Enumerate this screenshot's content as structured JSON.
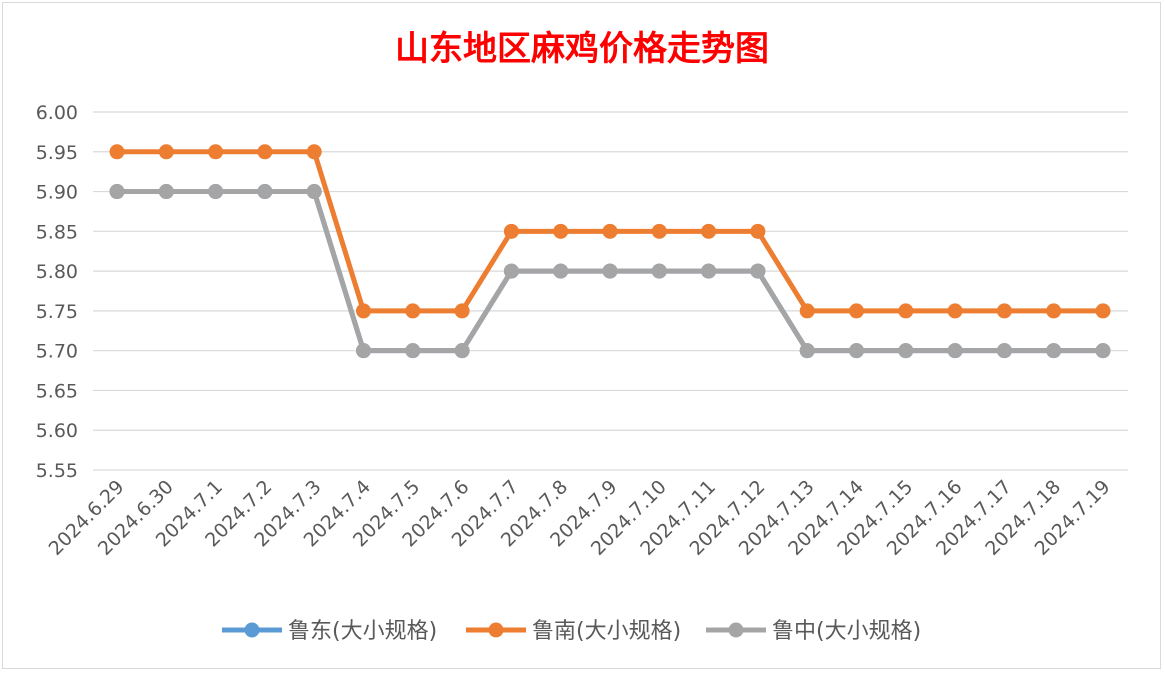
{
  "chart_data": {
    "type": "line",
    "title": "山东地区麻鸡价格走势图",
    "categories": [
      "2024.6.29",
      "2024.6.30",
      "2024.7.1",
      "2024.7.2",
      "2024.7.3",
      "2024.7.4",
      "2024.7.5",
      "2024.7.6",
      "2024.7.7",
      "2024.7.8",
      "2024.7.9",
      "2024.7.10",
      "2024.7.11",
      "2024.7.12",
      "2024.7.13",
      "2024.7.14",
      "2024.7.15",
      "2024.7.16",
      "2024.7.17",
      "2024.7.18",
      "2024.7.19"
    ],
    "series": [
      {
        "name": "鲁东(大小规格)",
        "color": "#5b9bd5",
        "values": [
          5.9,
          5.9,
          5.9,
          5.9,
          5.9,
          5.7,
          5.7,
          5.7,
          5.8,
          5.8,
          5.8,
          5.8,
          5.8,
          5.8,
          5.7,
          5.7,
          5.7,
          5.7,
          5.7,
          5.7,
          5.7
        ]
      },
      {
        "name": "鲁南(大小规格)",
        "color": "#ed7d31",
        "values": [
          5.95,
          5.95,
          5.95,
          5.95,
          5.95,
          5.75,
          5.75,
          5.75,
          5.85,
          5.85,
          5.85,
          5.85,
          5.85,
          5.85,
          5.75,
          5.75,
          5.75,
          5.75,
          5.75,
          5.75,
          5.75
        ]
      },
      {
        "name": "鲁中(大小规格)",
        "color": "#a5a5a5",
        "values": [
          5.9,
          5.9,
          5.9,
          5.9,
          5.9,
          5.7,
          5.7,
          5.7,
          5.8,
          5.8,
          5.8,
          5.8,
          5.8,
          5.8,
          5.7,
          5.7,
          5.7,
          5.7,
          5.7,
          5.7,
          5.7
        ]
      }
    ],
    "ylim": [
      5.55,
      6.0
    ],
    "yticks": [
      "5.55",
      "5.60",
      "5.65",
      "5.70",
      "5.75",
      "5.80",
      "5.85",
      "5.90",
      "5.95",
      "6.00"
    ],
    "grid": true,
    "legend": "bottom"
  }
}
